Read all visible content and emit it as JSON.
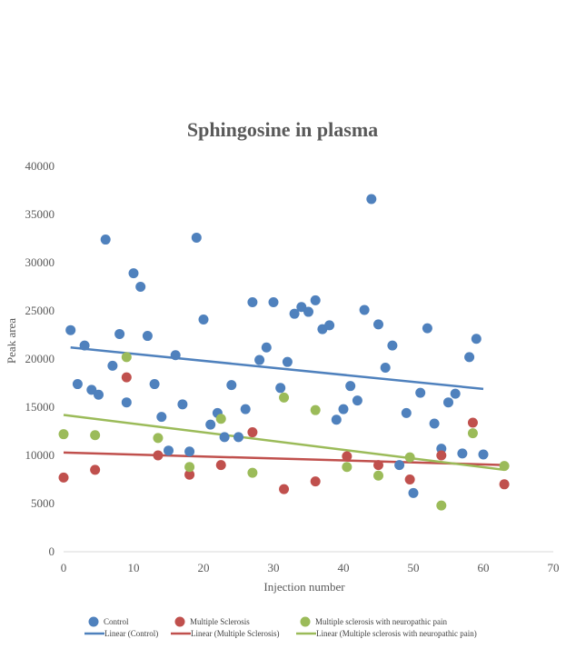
{
  "chart_data": {
    "type": "scatter",
    "title": "Sphingosine in plasma",
    "xlabel": "Injection number",
    "ylabel": "Peak area",
    "xlim": [
      0,
      70
    ],
    "ylim": [
      0,
      40000
    ],
    "x_ticks": [
      0,
      10,
      20,
      30,
      40,
      50,
      60,
      70
    ],
    "y_ticks": [
      0,
      5000,
      10000,
      15000,
      20000,
      25000,
      30000,
      35000,
      40000
    ],
    "grid": false,
    "legend_position": "bottom",
    "series": [
      {
        "name": "Control",
        "color": "#4F81BD",
        "points": [
          [
            1,
            23000
          ],
          [
            2,
            17400
          ],
          [
            3,
            21400
          ],
          [
            4,
            16800
          ],
          [
            5,
            16300
          ],
          [
            6,
            32400
          ],
          [
            7,
            19300
          ],
          [
            8,
            22600
          ],
          [
            9,
            15500
          ],
          [
            10,
            28900
          ],
          [
            11,
            27500
          ],
          [
            12,
            22400
          ],
          [
            13,
            17400
          ],
          [
            14,
            14000
          ],
          [
            15,
            10500
          ],
          [
            16,
            20400
          ],
          [
            17,
            15300
          ],
          [
            18,
            10400
          ],
          [
            19,
            32600
          ],
          [
            20,
            24100
          ],
          [
            21,
            13200
          ],
          [
            22,
            14400
          ],
          [
            23,
            11900
          ],
          [
            24,
            17300
          ],
          [
            25,
            11900
          ],
          [
            26,
            14800
          ],
          [
            27,
            25900
          ],
          [
            28,
            19900
          ],
          [
            29,
            21200
          ],
          [
            30,
            25900
          ],
          [
            31,
            17000
          ],
          [
            32,
            19700
          ],
          [
            33,
            24700
          ],
          [
            34,
            25400
          ],
          [
            35,
            24900
          ],
          [
            36,
            26100
          ],
          [
            37,
            23100
          ],
          [
            38,
            23500
          ],
          [
            39,
            13700
          ],
          [
            40,
            14800
          ],
          [
            41,
            17200
          ],
          [
            42,
            15700
          ],
          [
            43,
            25100
          ],
          [
            44,
            36600
          ],
          [
            45,
            23600
          ],
          [
            46,
            19100
          ],
          [
            47,
            21400
          ],
          [
            48,
            9000
          ],
          [
            49,
            14400
          ],
          [
            50,
            6100
          ],
          [
            51,
            16500
          ],
          [
            52,
            23200
          ],
          [
            53,
            13300
          ],
          [
            54,
            10700
          ],
          [
            55,
            15500
          ],
          [
            56,
            16400
          ],
          [
            57,
            10200
          ],
          [
            58,
            20200
          ],
          [
            59,
            22100
          ],
          [
            60,
            10100
          ]
        ],
        "trend": {
          "name": "Linear (Control)",
          "x": [
            1,
            60
          ],
          "y": [
            21200,
            16900
          ]
        }
      },
      {
        "name": "Multiple Sclerosis",
        "color": "#C0504D",
        "points": [
          [
            0,
            7700
          ],
          [
            4.5,
            8500
          ],
          [
            9,
            18100
          ],
          [
            13.5,
            10000
          ],
          [
            18,
            8000
          ],
          [
            22.5,
            9000
          ],
          [
            27,
            12400
          ],
          [
            31.5,
            6500
          ],
          [
            36,
            7300
          ],
          [
            40.5,
            9900
          ],
          [
            45,
            9000
          ],
          [
            49.5,
            7500
          ],
          [
            54,
            10000
          ],
          [
            58.5,
            13400
          ],
          [
            63,
            7000
          ]
        ],
        "trend": {
          "name": "Linear (Multiple Sclerosis)",
          "x": [
            0,
            63
          ],
          "y": [
            10300,
            9000
          ]
        }
      },
      {
        "name": "Multiple sclerosis with neuropathic pain",
        "color": "#9BBB59",
        "points": [
          [
            0,
            12200
          ],
          [
            4.5,
            12100
          ],
          [
            9,
            20200
          ],
          [
            13.5,
            11800
          ],
          [
            18,
            8800
          ],
          [
            22.5,
            13800
          ],
          [
            27,
            8200
          ],
          [
            31.5,
            16000
          ],
          [
            36,
            14700
          ],
          [
            40.5,
            8800
          ],
          [
            45,
            7900
          ],
          [
            49.5,
            9800
          ],
          [
            54,
            4800
          ],
          [
            58.5,
            12300
          ],
          [
            63,
            8900
          ]
        ],
        "trend": {
          "name": "Linear (Multiple sclerosis with neuropathic pain)",
          "x": [
            0,
            63
          ],
          "y": [
            14200,
            8500
          ]
        }
      }
    ]
  }
}
